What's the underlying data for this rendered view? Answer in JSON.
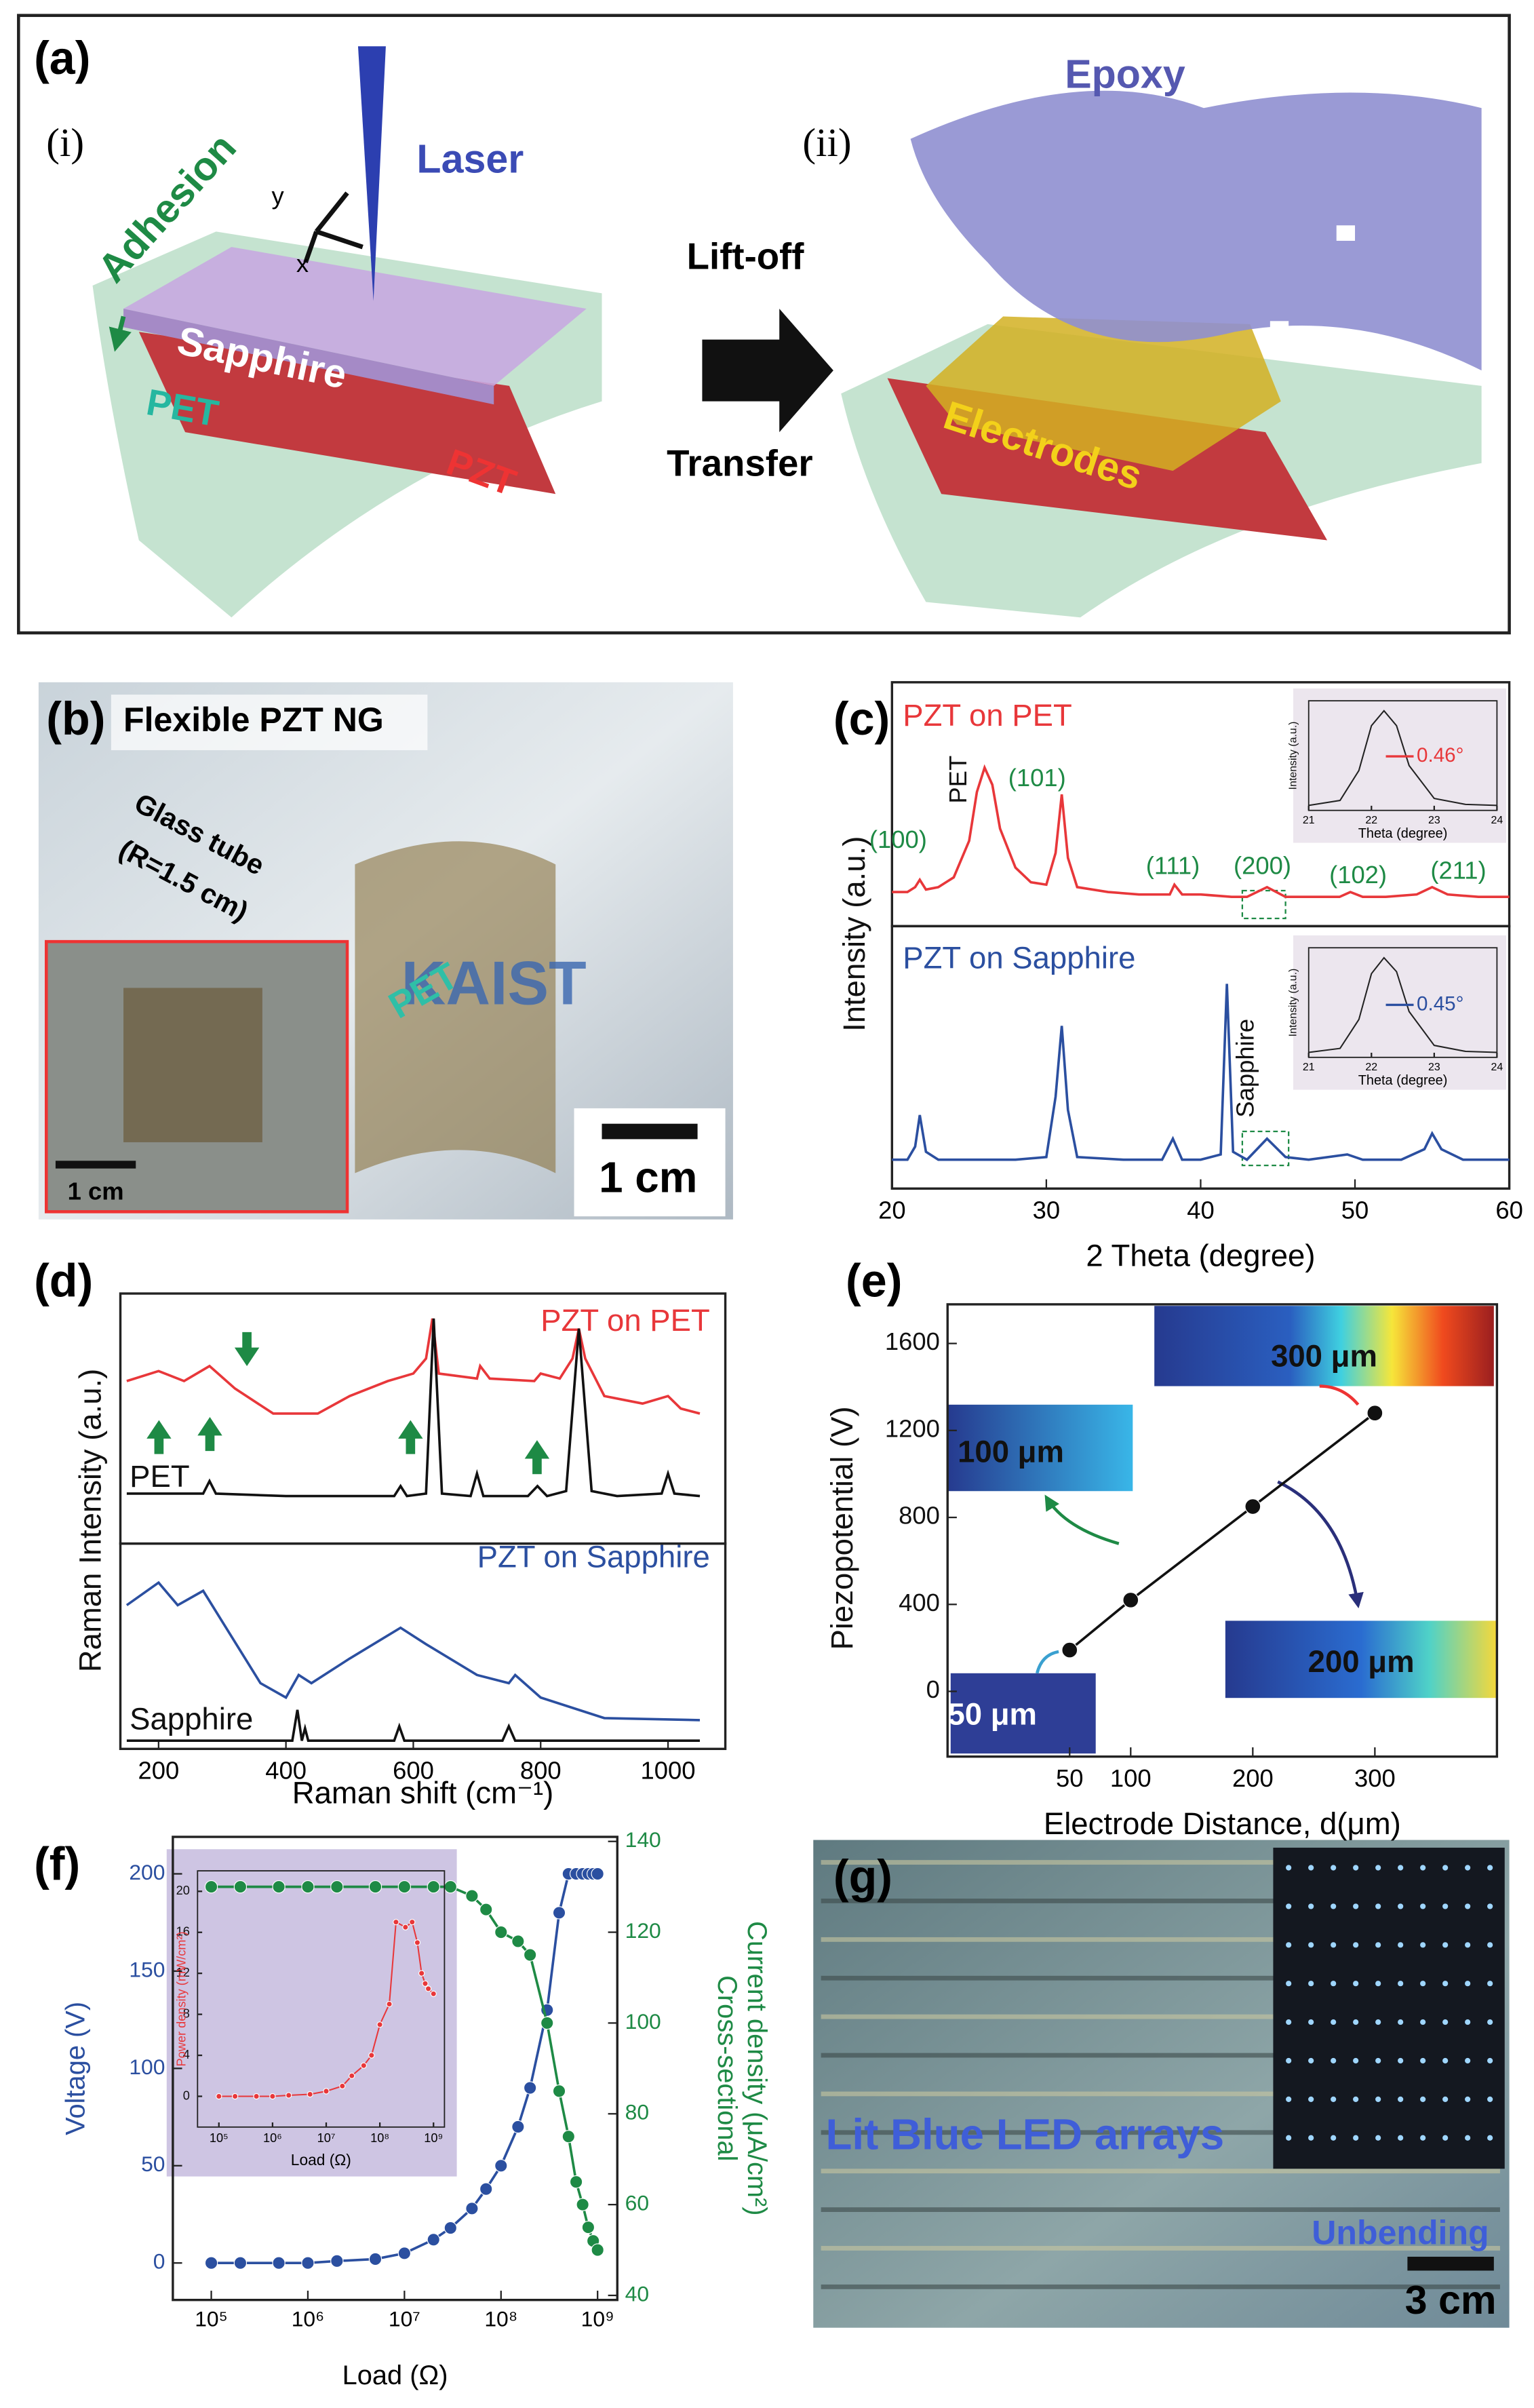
{
  "panel_a": {
    "label": "(a)",
    "sub_i": "(i)",
    "sub_ii": "(ii)",
    "laser": "Laser",
    "adhesion": "Adhesion",
    "sapphire": "Sapphire",
    "pet": "PET",
    "pzt": "PZT",
    "axis_x": "x",
    "axis_y": "y",
    "lift_off": "Lift-off",
    "transfer": "Transfer",
    "epoxy": "Epoxy",
    "electrodes": "Electrodes"
  },
  "panel_b": {
    "label": "(b)",
    "title": "Flexible PZT NG",
    "tube_1": "Glass tube",
    "tube_2": "(R=1.5 cm)",
    "pet": "PET",
    "brand": "KAIST",
    "scale_main": "1 cm",
    "scale_inset": "1 cm"
  },
  "panel_g": {
    "label": "(g)",
    "caption": "Lit Blue LED arrays",
    "state": "Unbending",
    "scale": "3 cm"
  },
  "chart_data": [
    {
      "type": "line",
      "panel": "(c)",
      "ylabel": "Intensity (a.u.)",
      "xlim": [
        20,
        60
      ],
      "ylim": [
        0,
        100
      ],
      "series": [
        {
          "name": "PZT on PET",
          "color": "#e8373a",
          "x": [
            20,
            21,
            21.5,
            21.8,
            22.2,
            23,
            24,
            25,
            25.5,
            26,
            26.5,
            27,
            28,
            29,
            30,
            30.6,
            31,
            31.4,
            32,
            34,
            36,
            38,
            38.3,
            38.8,
            40,
            42,
            43,
            44.3,
            45.5,
            47,
            49,
            49.7,
            50.5,
            52,
            54,
            55,
            56,
            58,
            60
          ],
          "values": [
            14,
            14,
            16,
            19,
            15,
            16,
            20,
            35,
            55,
            65,
            58,
            40,
            24,
            18,
            17,
            30,
            54,
            28,
            16,
            14,
            13,
            13,
            17,
            13,
            13,
            12,
            12,
            16,
            12,
            12,
            12,
            14,
            12,
            12,
            13,
            16,
            13,
            12,
            12
          ]
        }
      ],
      "annotations": [
        "(100)",
        "PET",
        "(101)",
        "(111)",
        "(200)",
        "(102)",
        "(211)"
      ]
    },
    {
      "type": "line",
      "xlabel": "2 Theta (degree)",
      "xlim": [
        20,
        60
      ],
      "xticks": [
        20,
        30,
        40,
        50,
        60
      ],
      "ylim": [
        0,
        100
      ],
      "series": [
        {
          "name": "PZT on Sapphire",
          "color": "#2b4fa0",
          "x": [
            20,
            21,
            21.5,
            21.8,
            22.2,
            23,
            25,
            28,
            30,
            30.6,
            31,
            31.4,
            32,
            35,
            37.5,
            38.2,
            38.8,
            40,
            41.3,
            41.7,
            42.1,
            43,
            44.3,
            45.5,
            47,
            49.5,
            50.5,
            53,
            54.5,
            55,
            55.6,
            57,
            60
          ],
          "values": [
            11,
            11,
            16,
            28,
            14,
            11,
            11,
            11,
            12,
            35,
            62,
            30,
            12,
            11,
            11,
            19,
            11,
            11,
            13,
            78,
            14,
            11,
            19,
            12,
            11,
            13,
            11,
            11,
            15,
            21,
            15,
            11,
            11
          ]
        }
      ],
      "annotations": [
        "Sapphire"
      ]
    },
    {
      "type": "line",
      "xlabel": "Theta (degree)",
      "ylabel": "Intensity (a.u.)",
      "xlim": [
        21,
        24
      ],
      "xticks": [
        21,
        22,
        23,
        24
      ],
      "ylim": [
        0,
        110
      ],
      "series": [
        {
          "color": "#222222",
          "x": [
            21,
            21.5,
            21.8,
            22,
            22.2,
            22.4,
            22.6,
            23,
            23.5,
            24
          ],
          "values": [
            5,
            10,
            40,
            85,
            100,
            85,
            45,
            12,
            6,
            5
          ]
        }
      ],
      "annotations": [
        "0.46°"
      ]
    },
    {
      "type": "line",
      "xlabel": "Theta (degree)",
      "ylabel": "Intensity (a.u.)",
      "xlim": [
        21,
        24
      ],
      "xticks": [
        21,
        22,
        23,
        24
      ],
      "ylim": [
        0,
        110
      ],
      "series": [
        {
          "color": "#222222",
          "x": [
            21,
            21.5,
            21.8,
            22,
            22.2,
            22.4,
            22.6,
            23,
            23.5,
            24
          ],
          "values": [
            5,
            9,
            38,
            84,
            100,
            86,
            46,
            12,
            6,
            5
          ]
        }
      ],
      "annotations": [
        "0.45°"
      ]
    },
    {
      "type": "line",
      "panel": "(d)",
      "ylabel": "Raman Intensity (a.u.)",
      "xlim": [
        140,
        1090
      ],
      "ylim": [
        0,
        100
      ],
      "series": [
        {
          "name": "PZT on PET",
          "color": "#e8373a",
          "x": [
            150,
            200,
            240,
            280,
            320,
            380,
            450,
            500,
            560,
            600,
            620,
            630,
            640,
            700,
            705,
            720,
            790,
            800,
            830,
            850,
            860,
            870,
            900,
            960,
            1000,
            1020,
            1050
          ],
          "values": [
            65,
            69,
            65,
            71,
            62,
            52,
            52,
            59,
            65,
            68,
            74,
            90,
            68,
            66,
            71,
            66,
            65,
            68,
            66,
            74,
            86,
            74,
            59,
            56,
            59,
            54,
            52
          ]
        },
        {
          "name": "PET",
          "color": "#111111",
          "x": [
            150,
            270,
            280,
            290,
            400,
            570,
            580,
            590,
            620,
            632,
            645,
            690,
            700,
            710,
            780,
            795,
            810,
            840,
            860,
            880,
            920,
            990,
            1000,
            1010,
            1050
          ],
          "values": [
            20,
            20,
            25,
            20,
            19,
            19,
            23,
            19,
            20,
            90,
            20,
            19,
            28,
            19,
            19,
            23,
            19,
            21,
            86,
            21,
            19,
            20,
            28,
            20,
            19
          ]
        }
      ]
    },
    {
      "type": "line",
      "xlabel": "Raman shift (cm⁻¹)",
      "xlim": [
        140,
        1090
      ],
      "xticks": [
        200,
        400,
        600,
        800,
        1000
      ],
      "ylim": [
        0,
        100
      ],
      "series": [
        {
          "name": "PZT on Sapphire",
          "color": "#2b4fa0",
          "x": [
            150,
            200,
            230,
            270,
            300,
            360,
            400,
            420,
            440,
            500,
            580,
            620,
            700,
            750,
            760,
            800,
            900,
            1050
          ],
          "values": [
            70,
            81,
            70,
            77,
            62,
            32,
            25,
            36,
            32,
            44,
            59,
            51,
            36,
            32,
            36,
            25,
            15,
            14
          ]
        },
        {
          "name": "Sapphire",
          "color": "#111111",
          "x": [
            150,
            410,
            418,
            425,
            430,
            435,
            570,
            578,
            586,
            740,
            750,
            760,
            1050
          ],
          "values": [
            4,
            4,
            19,
            4,
            10,
            4,
            4,
            11,
            4,
            4,
            11,
            4,
            4
          ]
        }
      ]
    },
    {
      "type": "line",
      "panel": "(e)",
      "markers": true,
      "xlabel": "Electrode Distance, d(μm)",
      "ylabel": "Piezopotential (V)",
      "xlim": [
        -50,
        400
      ],
      "xticks": [
        50,
        100,
        200,
        300
      ],
      "ylim": [
        -300,
        1780
      ],
      "yticks": [
        0,
        400,
        800,
        1200,
        1600
      ],
      "series": [
        {
          "color": "#111111",
          "x": [
            50,
            100,
            200,
            300
          ],
          "values": [
            190,
            420,
            850,
            1280
          ]
        }
      ],
      "annotations": [
        "300 μm",
        "100 μm",
        "200 μm",
        "50 μm"
      ]
    },
    {
      "type": "line",
      "panel": "(f)",
      "markers": true,
      "xscale": "log",
      "xlabel": "Load (Ω)",
      "ylabel": "Voltage (V)",
      "y2label": [
        "Cross-sectional",
        "Current density (μA/cm²)"
      ],
      "xlim": [
        40000,
        1600000000
      ],
      "xticks": [
        {
          "value": 100000,
          "label": "10⁵"
        },
        {
          "value": 1000000,
          "label": "10⁶"
        },
        {
          "value": 10000000,
          "label": "10⁷"
        },
        {
          "value": 100000000,
          "label": "10⁸"
        },
        {
          "value": 1000000000,
          "label": "10⁹"
        }
      ],
      "ylim": [
        -19,
        219
      ],
      "yticks": [
        0,
        50,
        100,
        150,
        200
      ],
      "y2lim": [
        39,
        141
      ],
      "y2ticks": [
        40,
        60,
        80,
        100,
        120,
        140
      ],
      "series": [
        {
          "color": "#2b4fa0",
          "x": [
            100000,
            200000,
            500000,
            1000000,
            2000000,
            5000000,
            10000000,
            20000000,
            30000000,
            50000000,
            70000000,
            100000000,
            150000000,
            200000000,
            300000000,
            400000000,
            500000000,
            600000000,
            700000000,
            800000000,
            900000000,
            1000000000
          ],
          "values": [
            0,
            0,
            0,
            0,
            1,
            2,
            5,
            12,
            18,
            28,
            38,
            50,
            70,
            90,
            130,
            180,
            200,
            200,
            200,
            200,
            200,
            200
          ]
        },
        {
          "color": "#1e8a45",
          "axis": "y2",
          "x": [
            100000,
            200000,
            500000,
            1000000,
            2000000,
            5000000,
            10000000,
            20000000,
            30000000,
            50000000,
            70000000,
            100000000,
            150000000,
            200000000,
            300000000,
            400000000,
            500000000,
            600000000,
            700000000,
            800000000,
            900000000,
            1000000000
          ],
          "values": [
            130,
            130,
            130,
            130,
            130,
            130,
            130,
            130,
            130,
            128,
            125,
            120,
            118,
            115,
            100,
            85,
            75,
            65,
            60,
            55,
            52,
            50
          ]
        }
      ]
    },
    {
      "type": "line",
      "markers": true,
      "xscale": "log",
      "xlabel": "Load (Ω)",
      "ylabel": "Power density (mW/cm²)",
      "xlim": [
        40000,
        1600000000
      ],
      "xticks": [
        {
          "value": 100000,
          "label": "10⁵"
        },
        {
          "value": 1000000,
          "label": "10⁶"
        },
        {
          "value": 10000000,
          "label": "10⁷"
        },
        {
          "value": 100000000,
          "label": "10⁸"
        },
        {
          "value": 1000000000,
          "label": "10⁹"
        }
      ],
      "ylim": [
        -3,
        22
      ],
      "yticks": [
        0,
        4,
        8,
        12,
        16,
        20
      ],
      "series": [
        {
          "color": "#e8373a",
          "x": [
            100000,
            200000,
            500000,
            1000000,
            2000000,
            5000000,
            10000000,
            20000000,
            30000000,
            50000000,
            70000000,
            100000000,
            150000000,
            200000000,
            300000000,
            400000000,
            500000000,
            600000000,
            700000000,
            800000000,
            1000000000
          ],
          "values": [
            0,
            0,
            0,
            0,
            0.1,
            0.2,
            0.5,
            1,
            2,
            3,
            4,
            7,
            9,
            17,
            16.5,
            17,
            15,
            12,
            11,
            10.5,
            10
          ]
        }
      ]
    }
  ]
}
